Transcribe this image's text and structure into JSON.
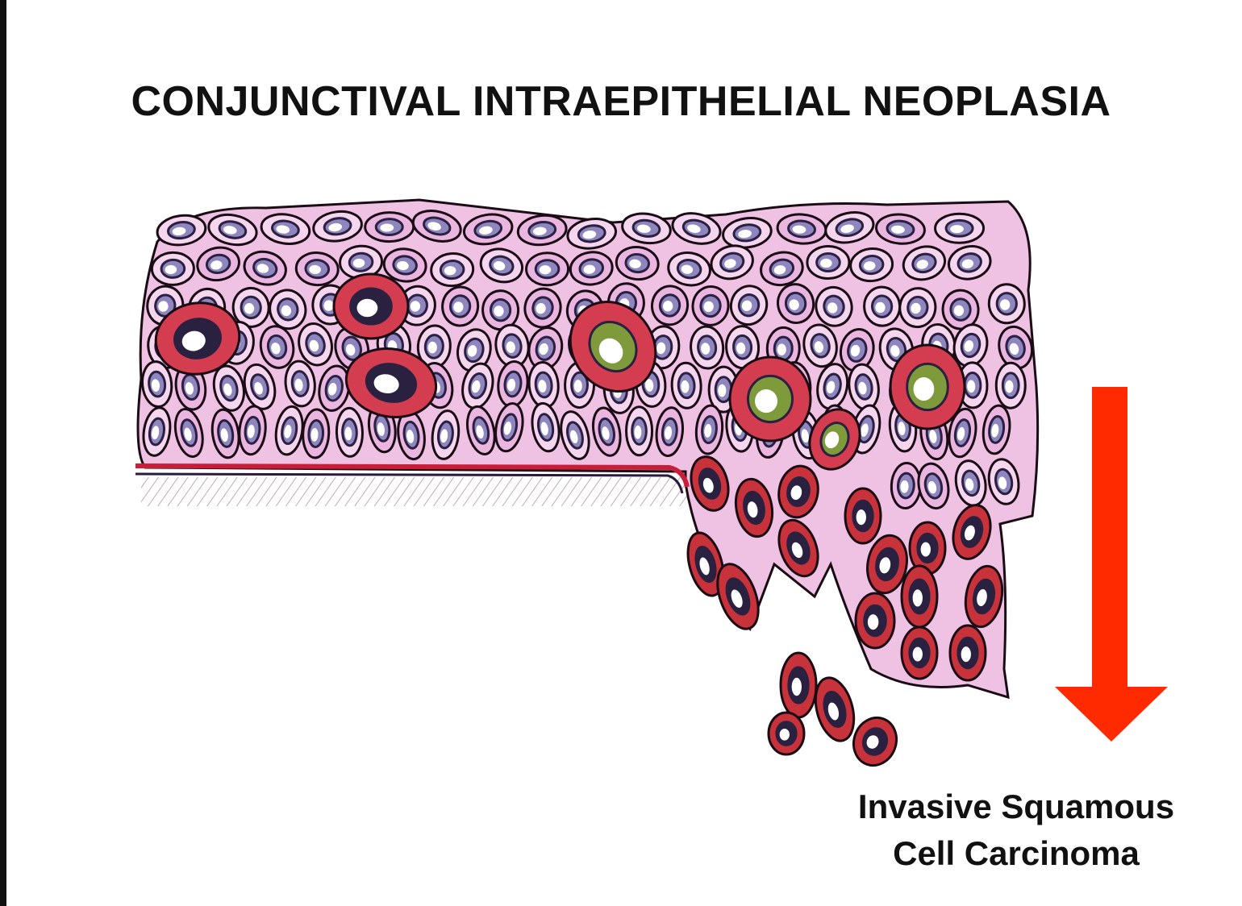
{
  "title": "CONJUNCTIVAL INTRAEPITHELIAL NEOPLASIA",
  "caption": {
    "line1": "Invasive Squamous",
    "line2": "Cell Carcinoma"
  },
  "colors": {
    "arrow": "#ff2a00",
    "normal_cell_fill": "#eab6df",
    "normal_cell_light": "#f6d6ee",
    "atypical_cell_fill": "#d43d50",
    "invasive_cell_fill": "#c8323a",
    "cell_outline": "#1a0c14",
    "basement_membrane": "#c81e3a",
    "nucleus_light": "#ffffff",
    "nucleus_dark": "#2a2040",
    "nucleus_green": "#7f9a3a"
  }
}
